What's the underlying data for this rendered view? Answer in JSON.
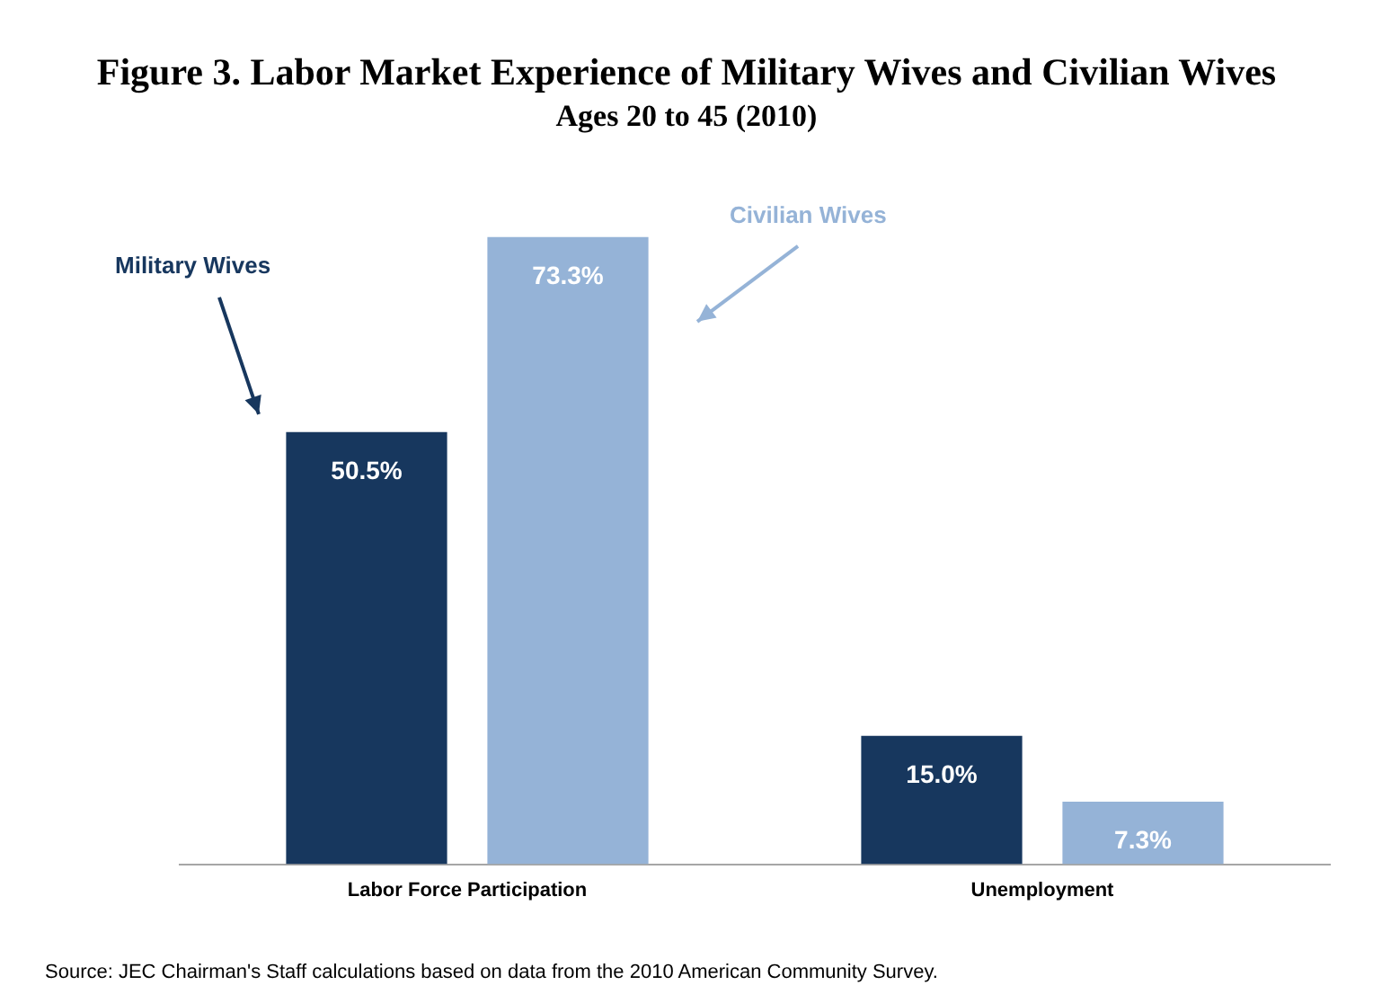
{
  "chart_data": {
    "type": "bar",
    "title": "Figure 3. Labor Market Experience of Military Wives and Civilian Wives",
    "subtitle": "Ages 20 to 45 (2010)",
    "categories": [
      "Labor Force Participation",
      "Unemployment"
    ],
    "series": [
      {
        "name": "Military Wives",
        "color": "#17375e",
        "values": [
          50.5,
          15.0
        ],
        "value_labels": [
          "50.5%",
          "15.0%"
        ]
      },
      {
        "name": "Civilian Wives",
        "color": "#95b3d7",
        "values": [
          73.3,
          7.3
        ],
        "value_labels": [
          "73.3%",
          "7.3%"
        ]
      }
    ],
    "legend": false,
    "grid": false,
    "tick_labels": "x",
    "annotations": [
      "Source: JEC Chairman's Staff calculations based on data from the 2010 American Community Survey."
    ]
  }
}
